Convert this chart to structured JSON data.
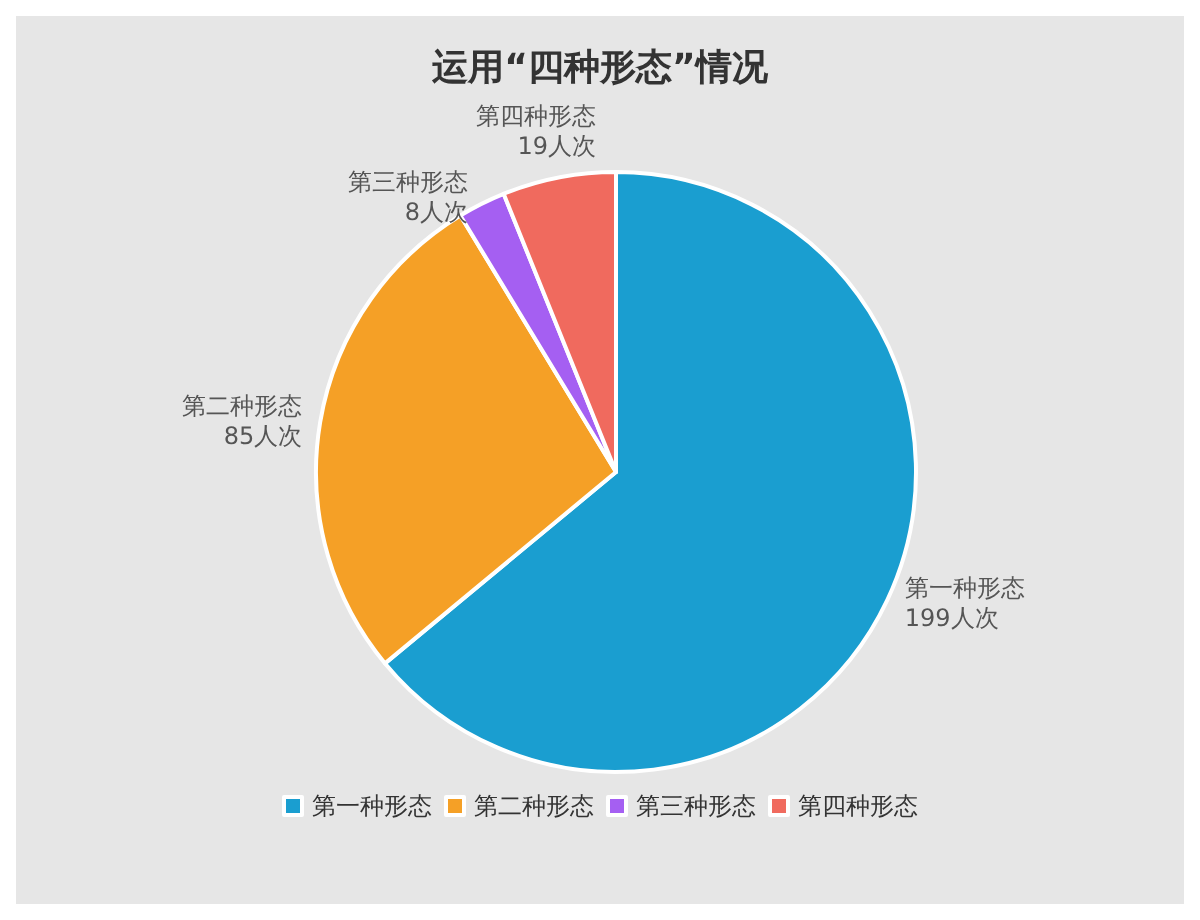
{
  "chart_data": {
    "type": "pie",
    "title": "运用“四种形态”情况",
    "categories": [
      "第一种形态",
      "第二种形态",
      "第三种形态",
      "第四种形态"
    ],
    "values": [
      199,
      85,
      8,
      19
    ],
    "value_labels": [
      "199人次",
      "85人次",
      "8人次",
      "19人次"
    ],
    "colors": [
      "#1a9ed0",
      "#f5a026",
      "#a55ff2",
      "#f06a5e"
    ],
    "legend": "bottom"
  }
}
